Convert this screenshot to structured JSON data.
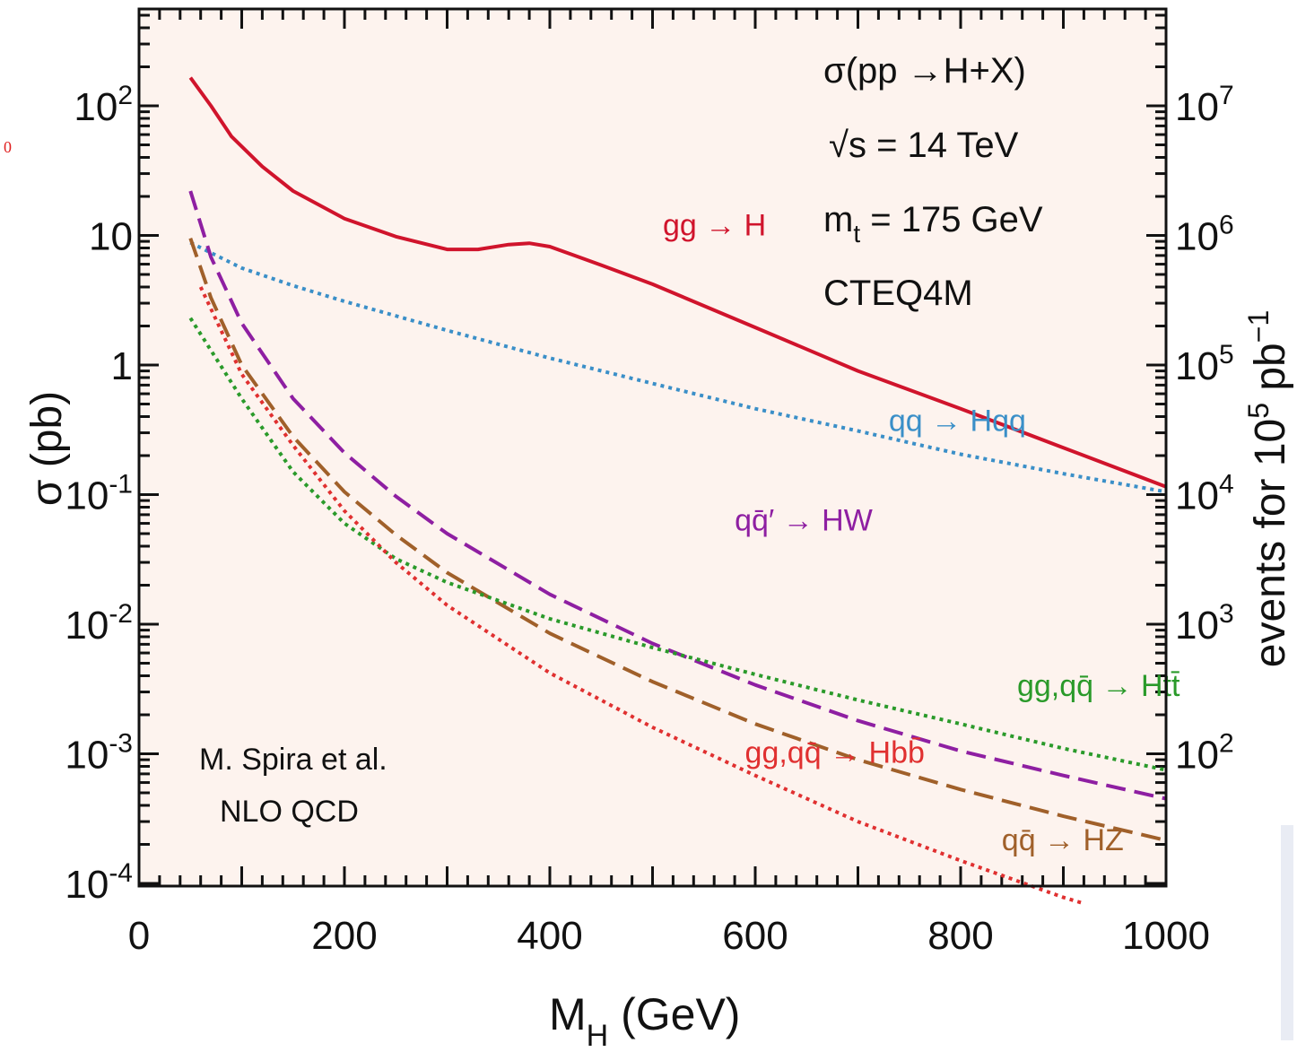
{
  "chart_data": {
    "type": "line",
    "xlabel": "M",
    "xlabel_sub": "H",
    "xlabel_unit": " (GeV)",
    "ylabel": "σ (pb)",
    "y2label": "events for 10",
    "y2label_exp": "5",
    "y2label_unit": " pb",
    "y2label_unit_exp": "−1",
    "xlim": [
      0,
      1000
    ],
    "ylim": [
      0.0001,
      500
    ],
    "yscale": "log",
    "x_ticks": [
      0,
      200,
      400,
      600,
      800,
      1000
    ],
    "y_ticks": [
      {
        "value": 100,
        "base": "10",
        "exp": "2"
      },
      {
        "value": 10,
        "base": "10",
        "exp": ""
      },
      {
        "value": 1,
        "base": "1",
        "exp": ""
      },
      {
        "value": 0.1,
        "base": "10",
        "exp": "-1"
      },
      {
        "value": 0.01,
        "base": "10",
        "exp": "-2"
      },
      {
        "value": 0.001,
        "base": "10",
        "exp": "-3"
      },
      {
        "value": 0.0001,
        "base": "10",
        "exp": "-4"
      }
    ],
    "y2_ticks": [
      {
        "value": 100,
        "base": "10",
        "exp": "7"
      },
      {
        "value": 10,
        "base": "10",
        "exp": "6"
      },
      {
        "value": 1,
        "base": "10",
        "exp": "5"
      },
      {
        "value": 0.1,
        "base": "10",
        "exp": "4"
      },
      {
        "value": 0.01,
        "base": "10",
        "exp": "3"
      },
      {
        "value": 0.001,
        "base": "10",
        "exp": "2"
      }
    ],
    "background": "#fdf3ee",
    "series": [
      {
        "name": "gg → H",
        "color": "#d0142c",
        "style": "solid",
        "label_pos": {
          "x": 510,
          "y": 10.0
        },
        "x": [
          50,
          70,
          90,
          120,
          150,
          200,
          250,
          300,
          330,
          360,
          380,
          400,
          450,
          500,
          600,
          700,
          800,
          900,
          1000
        ],
        "y": [
          165,
          100,
          58,
          34,
          22,
          13.5,
          9.8,
          7.8,
          7.8,
          8.5,
          8.7,
          8.2,
          5.9,
          4.2,
          1.95,
          0.9,
          0.46,
          0.23,
          0.115
        ]
      },
      {
        "name": "qq → Hqq",
        "color": "#3a8fc8",
        "style": "dotted",
        "label_pos": {
          "x": 730,
          "y": 0.31
        },
        "x": [
          50,
          100,
          150,
          200,
          300,
          400,
          500,
          600,
          700,
          800,
          900,
          1000
        ],
        "y": [
          8.8,
          5.6,
          4.1,
          3.1,
          1.85,
          1.13,
          0.72,
          0.46,
          0.31,
          0.205,
          0.145,
          0.105
        ]
      },
      {
        "name": "qq̄′ → HW",
        "color": "#8e1fa2",
        "style": "dashed",
        "label_pos": {
          "x": 580,
          "y": 0.053
        },
        "x": [
          50,
          70,
          100,
          150,
          200,
          250,
          300,
          400,
          500,
          600,
          700,
          800,
          900,
          1000
        ],
        "y": [
          22,
          6.8,
          2.1,
          0.55,
          0.21,
          0.097,
          0.05,
          0.017,
          0.0071,
          0.0034,
          0.0018,
          0.00105,
          0.00068,
          0.00045
        ]
      },
      {
        "name": "qq̄ → HZ",
        "color": "#a0602a",
        "style": "dashed",
        "label_pos": {
          "x": 840,
          "y": 0.00018
        },
        "x": [
          50,
          70,
          100,
          150,
          200,
          250,
          300,
          400,
          500,
          600,
          700,
          800,
          900,
          1000
        ],
        "y": [
          9.5,
          3.3,
          1.0,
          0.28,
          0.105,
          0.049,
          0.025,
          0.0085,
          0.0036,
          0.0017,
          0.0009,
          0.00053,
          0.00033,
          0.000215
        ]
      },
      {
        "name": "gg,qq̄ → Htt̄",
        "color": "#2a9a2a",
        "style": "dotted",
        "label_pos": {
          "x": 855,
          "y": 0.0028
        },
        "x": [
          50,
          100,
          150,
          200,
          250,
          300,
          400,
          500,
          600,
          700,
          800,
          900,
          1000
        ],
        "y": [
          2.3,
          0.55,
          0.15,
          0.06,
          0.032,
          0.021,
          0.011,
          0.0066,
          0.0041,
          0.0026,
          0.0017,
          0.0011,
          0.00075
        ]
      },
      {
        "name": "gg,qq̄ → Hbb̄",
        "color": "#e03030",
        "style": "dotted",
        "label_pos": {
          "x": 590,
          "y": 0.00085
        },
        "x": [
          60,
          100,
          150,
          200,
          250,
          300,
          400,
          500,
          600,
          700,
          800,
          900,
          920
        ],
        "y": [
          4.0,
          0.85,
          0.24,
          0.075,
          0.03,
          0.014,
          0.0042,
          0.0016,
          0.00068,
          0.0003,
          0.00015,
          7.8e-05,
          7e-05
        ]
      }
    ],
    "annotations": {
      "process": "σ(pp →H+X)",
      "energy": "√s = 14 TeV",
      "mass_top_m": "m",
      "mass_top_sub": "t",
      "mass_top_value": " = 175 GeV",
      "pdf": "CTEQ4M",
      "credit_line1": "M. Spira et al.",
      "credit_line2": "NLO  QCD"
    },
    "grid": false,
    "legend": "inline-labels"
  },
  "margin_glyph": "0"
}
